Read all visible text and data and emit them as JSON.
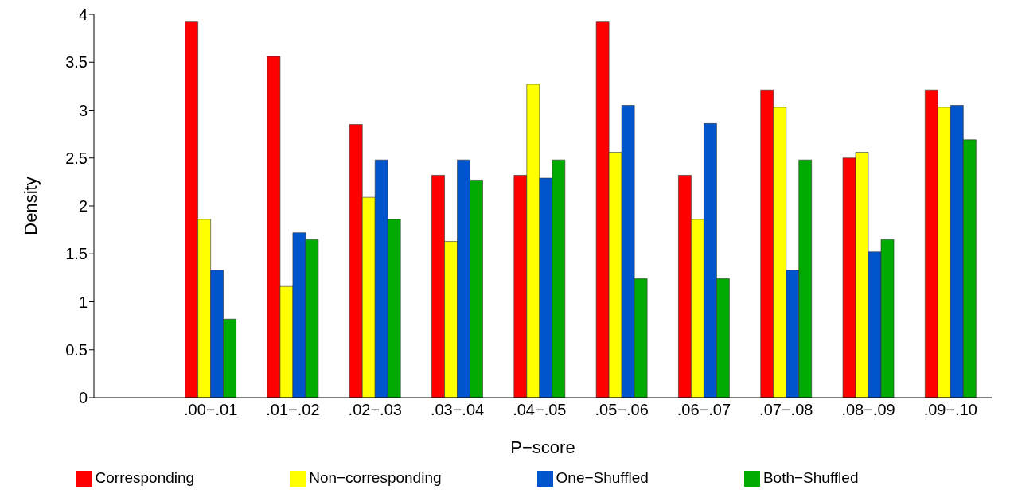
{
  "chart_data": {
    "type": "bar",
    "xlabel": "P−score",
    "ylabel": "Density",
    "categories": [
      ".00−.01",
      ".01−.02",
      ".02−.03",
      ".03−.04",
      ".04−.05",
      ".05−.06",
      ".06−.07",
      ".07−.08",
      ".08−.09",
      ".09−.10"
    ],
    "series": [
      {
        "name": "Corresponding",
        "color": "#ff0000",
        "values": [
          3.92,
          3.56,
          2.85,
          2.32,
          2.32,
          3.92,
          2.32,
          3.21,
          2.5,
          3.21
        ]
      },
      {
        "name": "Non−corresponding",
        "color": "#ffff00",
        "values": [
          1.86,
          1.16,
          2.09,
          1.63,
          3.27,
          2.56,
          1.86,
          3.03,
          2.56,
          3.03
        ]
      },
      {
        "name": "One−Shuffled",
        "color": "#0055cc",
        "values": [
          1.33,
          1.72,
          2.48,
          2.48,
          2.29,
          3.05,
          2.86,
          1.33,
          1.52,
          3.05
        ]
      },
      {
        "name": "Both−Shuffled",
        "color": "#00aa00",
        "values": [
          0.82,
          1.65,
          1.86,
          2.27,
          2.48,
          1.24,
          1.24,
          2.48,
          1.65,
          2.69
        ]
      }
    ],
    "ylim": [
      0,
      4
    ],
    "yticks": [
      0,
      0.5,
      1,
      1.5,
      2,
      2.5,
      3,
      3.5,
      4
    ],
    "grid": false,
    "legend": "bottom"
  }
}
